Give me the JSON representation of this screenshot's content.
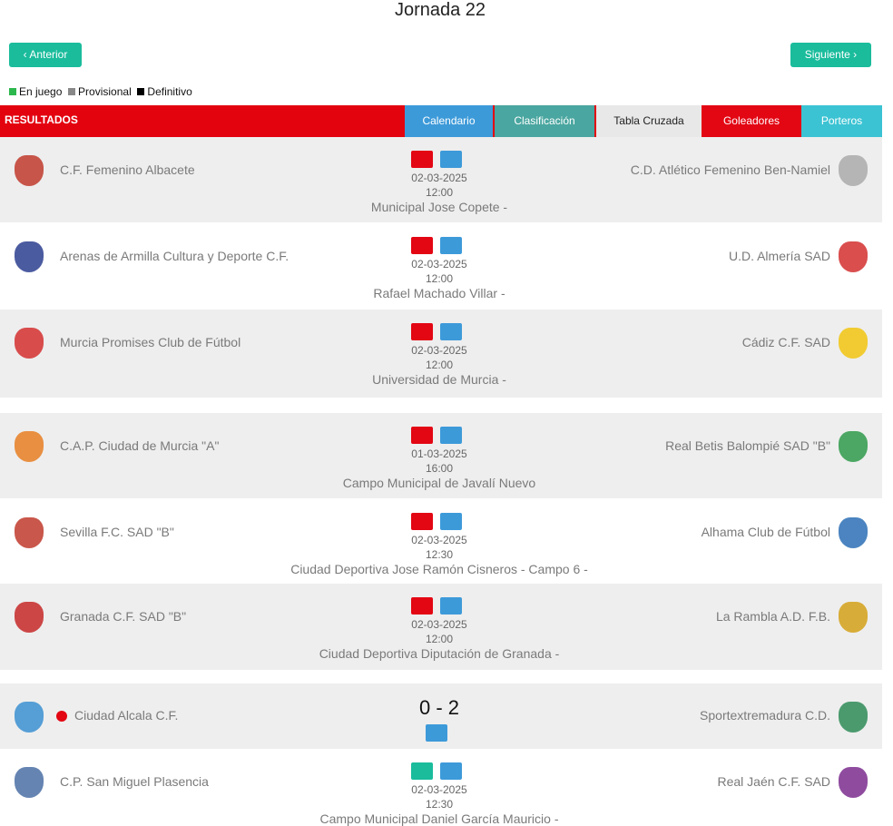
{
  "header": {
    "title": "Jornada 22",
    "prev": "Anterior",
    "next": "Siguiente"
  },
  "legend": [
    "En juego",
    "Provisional",
    "Definitivo"
  ],
  "section": "RESULTADOS",
  "tabs": [
    "Calendario",
    "Clasificación",
    "Tabla Cruzada",
    "Goleadores",
    "Porteros"
  ],
  "matches": [
    {
      "home": "C.F. Femenino Albacete",
      "away": "C.D. Atlético Femenino Ben-Namiel",
      "date": "02-03-2025",
      "time": "12:00",
      "venue": "Municipal Jose Copete -"
    },
    {
      "home": "Arenas de Armilla Cultura y Deporte C.F.",
      "away": "U.D. Almería SAD",
      "date": "02-03-2025",
      "time": "12:00",
      "venue": "Rafael Machado Villar -"
    },
    {
      "home": "Murcia Promises Club de Fútbol",
      "away": "Cádiz C.F. SAD",
      "date": "02-03-2025",
      "time": "12:00",
      "venue": "Universidad de Murcia -"
    },
    {
      "home": "C.A.P. Ciudad de Murcia \"A\"",
      "away": "Real Betis Balompié SAD \"B\"",
      "date": "01-03-2025",
      "time": "16:00",
      "venue": "Campo Municipal de Javalí Nuevo"
    },
    {
      "home": "Sevilla F.C. SAD \"B\"",
      "away": "Alhama Club de Fútbol",
      "date": "02-03-2025",
      "time": "12:30",
      "venue": "Ciudad Deportiva Jose Ramón Cisneros - Campo 6 -"
    },
    {
      "home": "Granada C.F. SAD \"B\"",
      "away": "La Rambla A.D. F.B.",
      "date": "02-03-2025",
      "time": "12:00",
      "venue": "Ciudad Deportiva Diputación de Granada -"
    },
    {
      "home": "Ciudad Alcala C.F.",
      "away": "Sportextremadura C.D.",
      "score": "0 - 2"
    },
    {
      "home": "C.P. San Miguel Plasencia",
      "away": "Real Jaén C.F. SAD",
      "date": "02-03-2025",
      "time": "12:30",
      "venue": "Campo Municipal Daniel García Mauricio -"
    }
  ]
}
